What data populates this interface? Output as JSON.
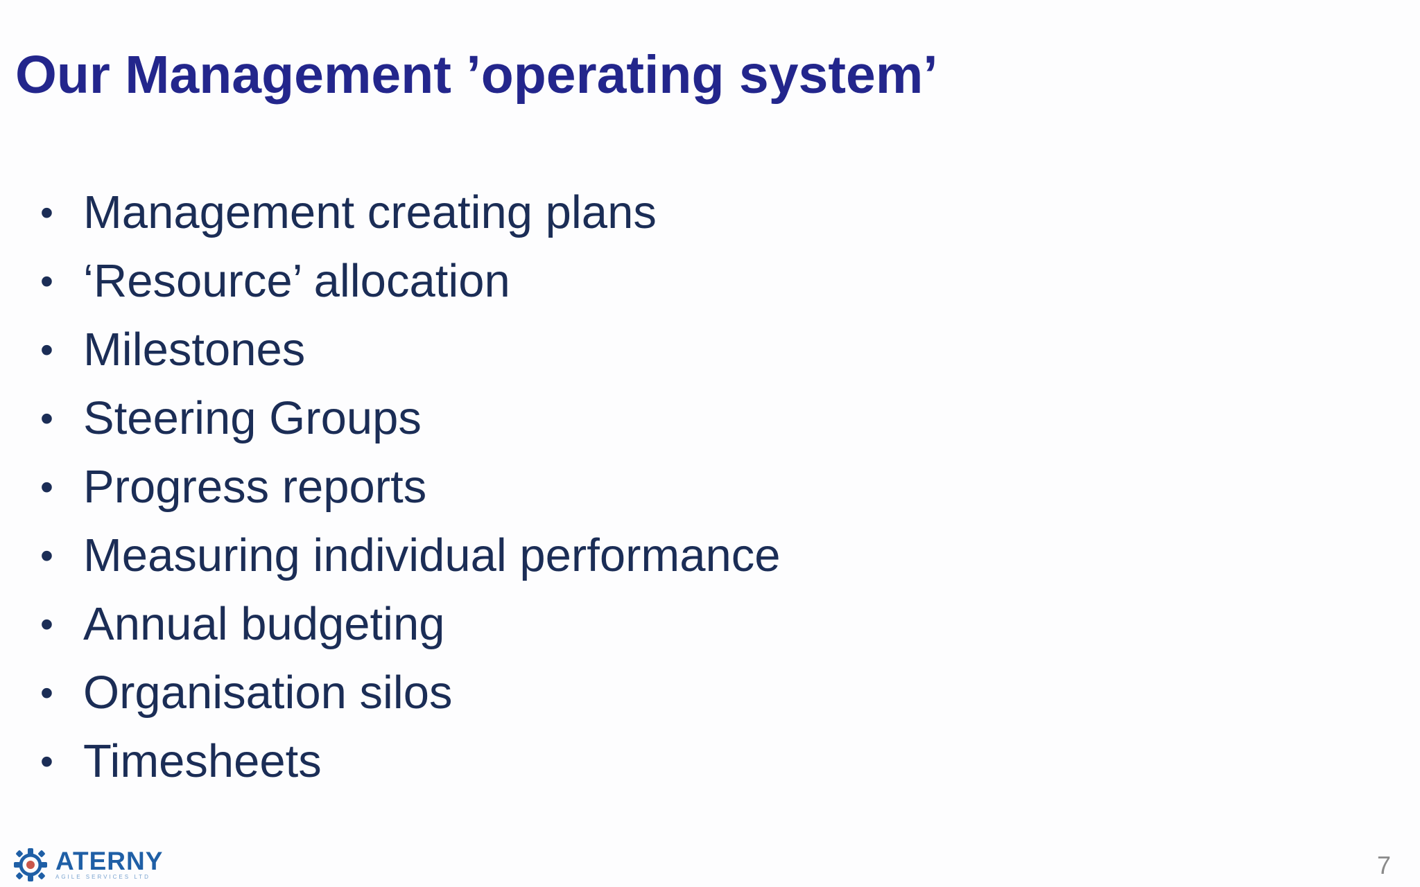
{
  "slide": {
    "title": "Our Management ’operating system’",
    "bullet_symbol": "•",
    "bullets": [
      "Management creating plans",
      "‘Resource’ allocation",
      "Milestones",
      "Steering Groups",
      "Progress reports",
      "Measuring individual performance",
      "Annual budgeting",
      "Organisation silos",
      "Timesheets"
    ],
    "page_number": "7"
  },
  "logo": {
    "name": "ATERNY",
    "tagline": "AGILE SERVICES LTD",
    "icon": "gear-icon"
  },
  "colors": {
    "title": "#23268c",
    "body_text": "#1b2d56",
    "logo_blue": "#1f5fa6",
    "page_number": "#8a8a8a",
    "background": "#fdfdfe"
  }
}
